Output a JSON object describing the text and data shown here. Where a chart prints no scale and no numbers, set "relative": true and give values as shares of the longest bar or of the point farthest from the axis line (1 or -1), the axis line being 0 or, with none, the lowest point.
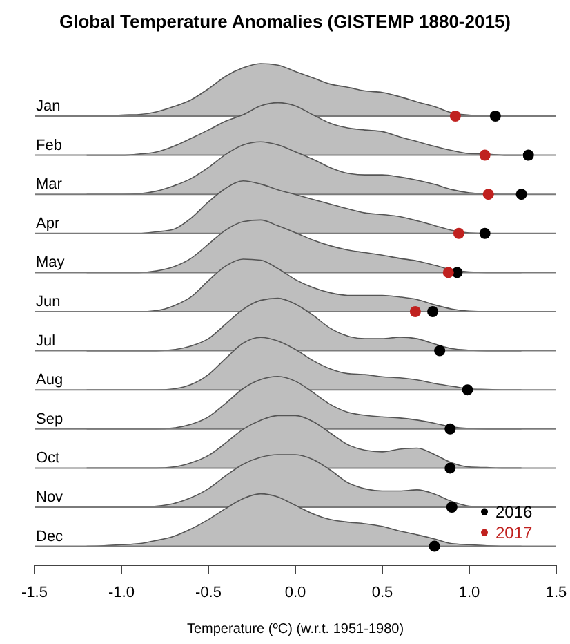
{
  "chart_data": [
    {
      "type": "area",
      "title": "Global Temperature Anomalies (GISTEMP 1880-2015)",
      "ylabel": "Jan",
      "relative": true,
      "tick_labels": false,
      "xlim": [
        -1.5,
        1.5
      ],
      "x": [
        -1.2,
        -1.1,
        -1.0,
        -0.9,
        -0.8,
        -0.7,
        -0.6,
        -0.5,
        -0.4,
        -0.3,
        -0.2,
        -0.1,
        0,
        0.1,
        0.2,
        0.3,
        0.4,
        0.5,
        0.6,
        0.7,
        0.8,
        0.9,
        1.0,
        1.1,
        1.2,
        1.3
      ],
      "series": [
        {
          "color": "#bebebe",
          "values": [
            0,
            0,
            0.02,
            0.03,
            0.08,
            0.18,
            0.31,
            0.52,
            0.76,
            0.92,
            1,
            0.97,
            0.85,
            0.73,
            0.61,
            0.55,
            0.48,
            0.45,
            0.37,
            0.27,
            0.18,
            0.06,
            0.02,
            0,
            0,
            0
          ]
        },
        {
          "type": "scatter",
          "marker": "circle",
          "color": "#000000",
          "x": [
            1.15
          ],
          "values": [
            0
          ]
        },
        {
          "type": "scatter",
          "marker": "circle",
          "color": "#c0211f",
          "x": [
            0.92
          ],
          "values": [
            0
          ]
        }
      ]
    },
    {
      "type": "area",
      "ylabel": "Feb",
      "relative": true,
      "tick_labels": false,
      "xlim": [
        -1.5,
        1.5
      ],
      "x": [
        -1.2,
        -1.1,
        -1.0,
        -0.9,
        -0.8,
        -0.7,
        -0.6,
        -0.5,
        -0.4,
        -0.3,
        -0.2,
        -0.1,
        0,
        0.1,
        0.2,
        0.3,
        0.4,
        0.5,
        0.6,
        0.7,
        0.8,
        0.9,
        1.0,
        1.1,
        1.2,
        1.3
      ],
      "series": [
        {
          "color": "#bebebe",
          "values": [
            0,
            0,
            0,
            0.02,
            0.06,
            0.17,
            0.32,
            0.48,
            0.65,
            0.77,
            0.94,
            1,
            0.94,
            0.77,
            0.61,
            0.52,
            0.48,
            0.45,
            0.35,
            0.26,
            0.17,
            0.09,
            0.03,
            0.02,
            0,
            0
          ]
        },
        {
          "type": "scatter",
          "marker": "circle",
          "color": "#000000",
          "x": [
            1.34
          ],
          "values": [
            0
          ]
        },
        {
          "type": "scatter",
          "marker": "circle",
          "color": "#c0211f",
          "x": [
            1.09
          ],
          "values": [
            0
          ]
        }
      ]
    },
    {
      "type": "area",
      "ylabel": "Mar",
      "relative": true,
      "tick_labels": false,
      "xlim": [
        -1.5,
        1.5
      ],
      "x": [
        -1.2,
        -1.1,
        -1.0,
        -0.9,
        -0.8,
        -0.7,
        -0.6,
        -0.5,
        -0.4,
        -0.3,
        -0.2,
        -0.1,
        0,
        0.1,
        0.2,
        0.3,
        0.4,
        0.5,
        0.6,
        0.7,
        0.8,
        0.9,
        1.0,
        1.1,
        1.2,
        1.3
      ],
      "series": [
        {
          "color": "#bebebe",
          "values": [
            0,
            0,
            0,
            0.01,
            0.06,
            0.16,
            0.3,
            0.51,
            0.76,
            0.94,
            1,
            0.94,
            0.81,
            0.67,
            0.51,
            0.4,
            0.37,
            0.37,
            0.33,
            0.27,
            0.19,
            0.09,
            0.03,
            0.01,
            0,
            0
          ]
        },
        {
          "type": "scatter",
          "marker": "circle",
          "color": "#000000",
          "x": [
            1.3
          ],
          "values": [
            0
          ]
        },
        {
          "type": "scatter",
          "marker": "circle",
          "color": "#c0211f",
          "x": [
            1.11
          ],
          "values": [
            0
          ]
        }
      ]
    },
    {
      "type": "area",
      "ylabel": "Apr",
      "relative": true,
      "tick_labels": false,
      "xlim": [
        -1.5,
        1.5
      ],
      "x": [
        -1.2,
        -1.1,
        -1.0,
        -0.9,
        -0.8,
        -0.7,
        -0.6,
        -0.5,
        -0.4,
        -0.3,
        -0.2,
        -0.1,
        0,
        0.1,
        0.2,
        0.3,
        0.4,
        0.5,
        0.6,
        0.7,
        0.8,
        0.9,
        1.0,
        1.1,
        1.2,
        1.3
      ],
      "series": [
        {
          "color": "#bebebe",
          "values": [
            0,
            0,
            0,
            0,
            0.03,
            0.08,
            0.29,
            0.6,
            0.86,
            1,
            0.94,
            0.83,
            0.74,
            0.65,
            0.56,
            0.47,
            0.39,
            0.36,
            0.32,
            0.24,
            0.15,
            0.06,
            0.01,
            0,
            0,
            0
          ]
        },
        {
          "type": "scatter",
          "marker": "circle",
          "color": "#000000",
          "x": [
            1.09
          ],
          "values": [
            0
          ]
        },
        {
          "type": "scatter",
          "marker": "circle",
          "color": "#c0211f",
          "x": [
            0.94
          ],
          "values": [
            0
          ]
        }
      ]
    },
    {
      "type": "area",
      "ylabel": "May",
      "relative": true,
      "tick_labels": false,
      "xlim": [
        -1.5,
        1.5
      ],
      "x": [
        -1.2,
        -1.1,
        -1.0,
        -0.9,
        -0.8,
        -0.7,
        -0.6,
        -0.5,
        -0.4,
        -0.3,
        -0.2,
        -0.1,
        0,
        0.1,
        0.2,
        0.3,
        0.4,
        0.5,
        0.6,
        0.7,
        0.8,
        0.9,
        1.0,
        1.1,
        1.2,
        1.3
      ],
      "series": [
        {
          "color": "#bebebe",
          "values": [
            0,
            0,
            0,
            0,
            0.03,
            0.11,
            0.27,
            0.54,
            0.81,
            0.97,
            1,
            0.89,
            0.76,
            0.62,
            0.51,
            0.43,
            0.38,
            0.33,
            0.27,
            0.22,
            0.14,
            0.05,
            0.01,
            0,
            0,
            0
          ]
        },
        {
          "type": "scatter",
          "marker": "circle",
          "color": "#000000",
          "x": [
            0.93
          ],
          "values": [
            0
          ]
        },
        {
          "type": "scatter",
          "marker": "circle",
          "color": "#c0211f",
          "x": [
            0.88
          ],
          "values": [
            0
          ]
        }
      ]
    },
    {
      "type": "area",
      "ylabel": "Jun",
      "relative": true,
      "tick_labels": false,
      "xlim": [
        -1.5,
        1.5
      ],
      "x": [
        -1.2,
        -1.1,
        -1.0,
        -0.9,
        -0.8,
        -0.7,
        -0.6,
        -0.5,
        -0.4,
        -0.3,
        -0.2,
        -0.1,
        0,
        0.1,
        0.2,
        0.3,
        0.4,
        0.5,
        0.6,
        0.7,
        0.8,
        0.9,
        1.0,
        1.1,
        1.2,
        1.3
      ],
      "series": [
        {
          "color": "#bebebe",
          "values": [
            0,
            0,
            0,
            0,
            0.02,
            0.11,
            0.28,
            0.59,
            0.87,
            1,
            0.98,
            0.82,
            0.61,
            0.46,
            0.36,
            0.31,
            0.31,
            0.31,
            0.28,
            0.23,
            0.13,
            0.05,
            0.01,
            0,
            0,
            0
          ]
        },
        {
          "type": "scatter",
          "marker": "circle",
          "color": "#000000",
          "x": [
            0.79
          ],
          "values": [
            0
          ]
        },
        {
          "type": "scatter",
          "marker": "circle",
          "color": "#c0211f",
          "x": [
            0.69
          ],
          "values": [
            0
          ]
        }
      ]
    },
    {
      "type": "area",
      "ylabel": "Jul",
      "relative": true,
      "tick_labels": false,
      "xlim": [
        -1.5,
        1.5
      ],
      "x": [
        -1.2,
        -1.1,
        -1.0,
        -0.9,
        -0.8,
        -0.7,
        -0.6,
        -0.5,
        -0.4,
        -0.3,
        -0.2,
        -0.1,
        0,
        0.1,
        0.2,
        0.3,
        0.4,
        0.5,
        0.6,
        0.7,
        0.8,
        0.9,
        1.0,
        1.1,
        1.2,
        1.3
      ],
      "series": [
        {
          "color": "#bebebe",
          "values": [
            0,
            0,
            0,
            0,
            0,
            0.02,
            0.09,
            0.23,
            0.51,
            0.79,
            0.96,
            1,
            0.89,
            0.68,
            0.43,
            0.28,
            0.23,
            0.23,
            0.26,
            0.23,
            0.13,
            0.04,
            0.01,
            0,
            0,
            0
          ]
        },
        {
          "type": "scatter",
          "marker": "circle",
          "color": "#000000",
          "x": [
            0.83
          ],
          "values": [
            0
          ]
        }
      ]
    },
    {
      "type": "area",
      "ylabel": "Aug",
      "relative": true,
      "tick_labels": false,
      "xlim": [
        -1.5,
        1.5
      ],
      "x": [
        -1.2,
        -1.1,
        -1.0,
        -0.9,
        -0.8,
        -0.7,
        -0.6,
        -0.5,
        -0.4,
        -0.3,
        -0.2,
        -0.1,
        0,
        0.1,
        0.2,
        0.3,
        0.4,
        0.5,
        0.6,
        0.7,
        0.8,
        0.9,
        1.0,
        1.1,
        1.2,
        1.3
      ],
      "series": [
        {
          "color": "#bebebe",
          "values": [
            0,
            0,
            0,
            0,
            0,
            0.02,
            0.1,
            0.29,
            0.6,
            0.89,
            1,
            0.93,
            0.77,
            0.56,
            0.4,
            0.31,
            0.29,
            0.25,
            0.23,
            0.19,
            0.12,
            0.07,
            0.02,
            0.01,
            0,
            0
          ]
        },
        {
          "type": "scatter",
          "marker": "circle",
          "color": "#000000",
          "x": [
            0.99
          ],
          "values": [
            0
          ]
        }
      ]
    },
    {
      "type": "area",
      "ylabel": "Sep",
      "relative": true,
      "tick_labels": false,
      "xlim": [
        -1.5,
        1.5
      ],
      "x": [
        -1.2,
        -1.1,
        -1.0,
        -0.9,
        -0.8,
        -0.7,
        -0.6,
        -0.5,
        -0.4,
        -0.3,
        -0.2,
        -0.1,
        0,
        0.1,
        0.2,
        0.3,
        0.4,
        0.5,
        0.6,
        0.7,
        0.8,
        0.9,
        1.0,
        1.1,
        1.2,
        1.3
      ],
      "series": [
        {
          "color": "#bebebe",
          "values": [
            0,
            0,
            0,
            0,
            0,
            0.02,
            0.09,
            0.23,
            0.49,
            0.77,
            0.94,
            1,
            0.91,
            0.7,
            0.47,
            0.32,
            0.26,
            0.23,
            0.21,
            0.17,
            0.11,
            0.04,
            0.01,
            0,
            0,
            0
          ]
        },
        {
          "type": "scatter",
          "marker": "circle",
          "color": "#000000",
          "x": [
            0.89
          ],
          "values": [
            0
          ]
        }
      ]
    },
    {
      "type": "area",
      "ylabel": "Oct",
      "relative": true,
      "tick_labels": false,
      "xlim": [
        -1.5,
        1.5
      ],
      "x": [
        -1.2,
        -1.1,
        -1.0,
        -0.9,
        -0.8,
        -0.7,
        -0.6,
        -0.5,
        -0.4,
        -0.3,
        -0.2,
        -0.1,
        0,
        0.1,
        0.2,
        0.3,
        0.4,
        0.5,
        0.6,
        0.7,
        0.8,
        0.9,
        1.0,
        1.1,
        1.2,
        1.3
      ],
      "series": [
        {
          "color": "#bebebe",
          "values": [
            0,
            0,
            0,
            0,
            0,
            0.02,
            0.1,
            0.24,
            0.48,
            0.74,
            0.91,
            1,
            1,
            0.89,
            0.67,
            0.45,
            0.34,
            0.31,
            0.36,
            0.38,
            0.26,
            0.1,
            0.02,
            0.01,
            0,
            0
          ]
        },
        {
          "type": "scatter",
          "marker": "circle",
          "color": "#000000",
          "x": [
            0.89
          ],
          "values": [
            0
          ]
        }
      ]
    },
    {
      "type": "area",
      "ylabel": "Nov",
      "relative": true,
      "tick_labels": false,
      "xlim": [
        -1.5,
        1.5
      ],
      "x": [
        -1.2,
        -1.1,
        -1.0,
        -0.9,
        -0.8,
        -0.7,
        -0.6,
        -0.5,
        -0.4,
        -0.3,
        -0.2,
        -0.1,
        0,
        0.1,
        0.2,
        0.3,
        0.4,
        0.5,
        0.6,
        0.7,
        0.8,
        0.9,
        1.0,
        1.1,
        1.2,
        1.3
      ],
      "series": [
        {
          "color": "#bebebe",
          "values": [
            0,
            0,
            0,
            0,
            0.02,
            0.07,
            0.18,
            0.35,
            0.6,
            0.82,
            0.95,
            1,
            1,
            0.91,
            0.71,
            0.47,
            0.35,
            0.31,
            0.31,
            0.33,
            0.25,
            0.11,
            0.02,
            0,
            0,
            0
          ]
        },
        {
          "type": "scatter",
          "marker": "circle",
          "color": "#000000",
          "x": [
            0.9
          ],
          "values": [
            0
          ]
        }
      ]
    },
    {
      "type": "area",
      "ylabel": "Dec",
      "xlabel": "Temperature (ºC) (w.r.t. 1951-1980)",
      "relative": true,
      "tick_labels": "x",
      "legend": "bottom right",
      "xlim": [
        -1.5,
        1.5
      ],
      "xticks": [
        -1.5,
        {
          "value": -1,
          "label": "-1.0"
        },
        -0.5,
        {
          "value": 0,
          "label": "0.0"
        },
        0.5,
        {
          "value": 1,
          "label": "1.0"
        },
        1.5
      ],
      "x": [
        -1.2,
        -1.1,
        -1.0,
        -0.9,
        -0.8,
        -0.7,
        -0.6,
        -0.5,
        -0.4,
        -0.3,
        -0.2,
        -0.1,
        0,
        0.1,
        0.2,
        0.3,
        0.4,
        0.5,
        0.6,
        0.7,
        0.8,
        0.9,
        1.0,
        1.1,
        1.2,
        1.3
      ],
      "series": [
        {
          "color": "#bebebe",
          "values": [
            0,
            0.01,
            0.03,
            0.05,
            0.11,
            0.19,
            0.33,
            0.51,
            0.72,
            0.91,
            1,
            0.94,
            0.78,
            0.62,
            0.51,
            0.46,
            0.43,
            0.38,
            0.29,
            0.22,
            0.14,
            0.05,
            0.03,
            0.01,
            0,
            0
          ]
        },
        {
          "name": "2016",
          "type": "scatter",
          "marker": "circle",
          "color": "#000000",
          "x": [
            0.8
          ],
          "values": [
            0
          ]
        },
        {
          "name": "2017",
          "type": "scatter",
          "marker": "circle",
          "color": "#c0211f",
          "x": [
            null
          ],
          "values": [
            null
          ]
        }
      ]
    }
  ]
}
